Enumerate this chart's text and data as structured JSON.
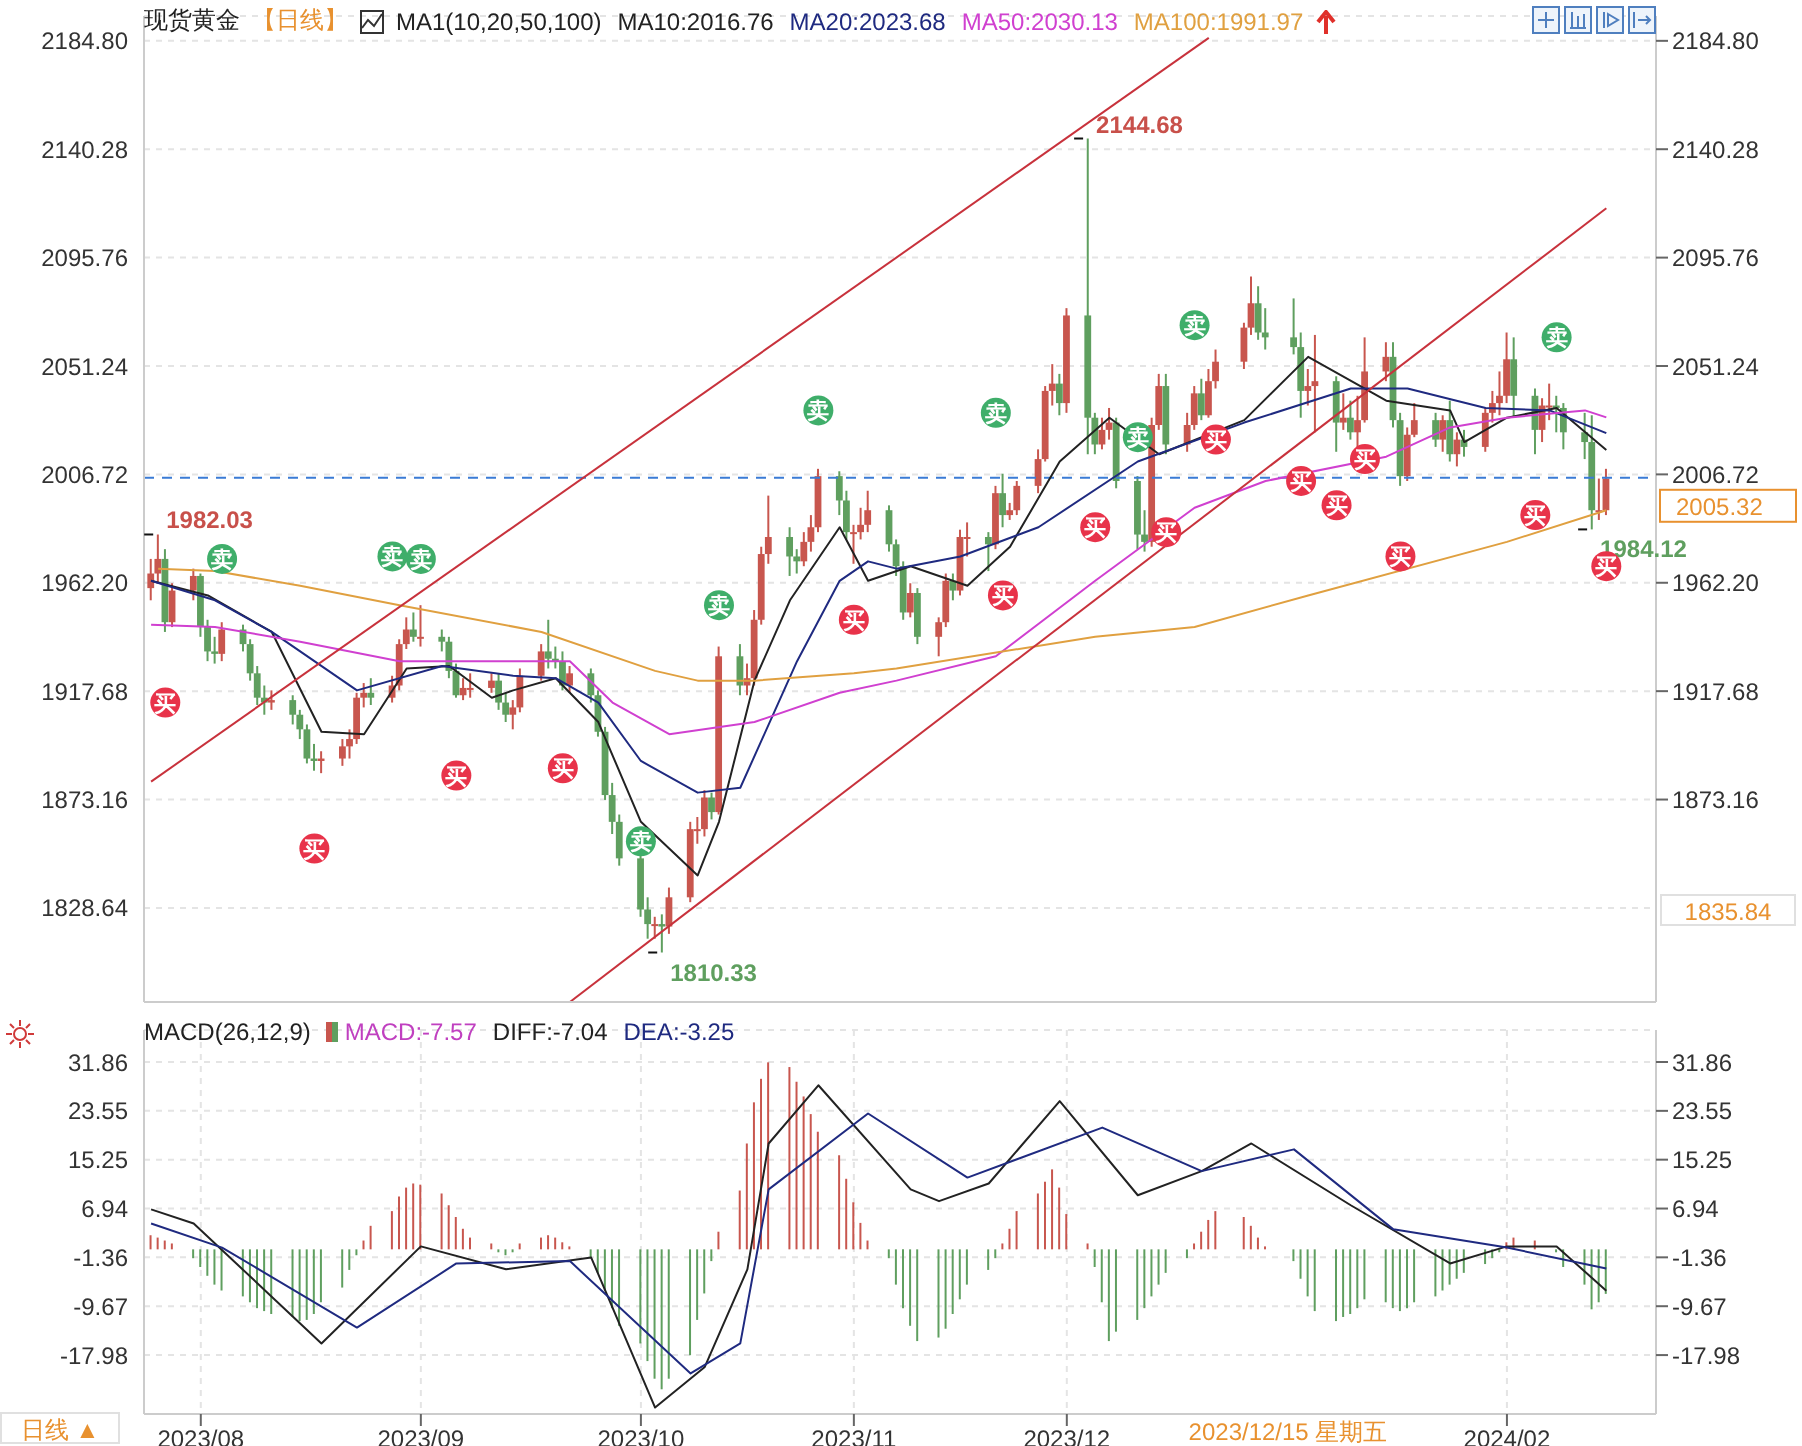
{
  "chart_data": [
    {
      "type": "candlestick",
      "title": "现货黄金",
      "subtitle": "【日线】",
      "legend_title": "MA1(10,20,50,100)",
      "legend": "top",
      "grid": true,
      "tick_labels": "y",
      "x": [
        "2023-07-25",
        "2023-07-26",
        "2023-07-27",
        "2023-07-28",
        "2023-07-31",
        "2023-08-01",
        "2023-08-02",
        "2023-08-03",
        "2023-08-04",
        "2023-08-07",
        "2023-08-08",
        "2023-08-09",
        "2023-08-10",
        "2023-08-11",
        "2023-08-14",
        "2023-08-15",
        "2023-08-16",
        "2023-08-17",
        "2023-08-18",
        "2023-08-21",
        "2023-08-22",
        "2023-08-23",
        "2023-08-24",
        "2023-08-25",
        "2023-08-28",
        "2023-08-29",
        "2023-08-30",
        "2023-08-31",
        "2023-09-01",
        "2023-09-04",
        "2023-09-05",
        "2023-09-06",
        "2023-09-07",
        "2023-09-08",
        "2023-09-11",
        "2023-09-12",
        "2023-09-13",
        "2023-09-14",
        "2023-09-15",
        "2023-09-18",
        "2023-09-19",
        "2023-09-20",
        "2023-09-21",
        "2023-09-22",
        "2023-09-25",
        "2023-09-26",
        "2023-09-27",
        "2023-09-28",
        "2023-09-29",
        "2023-10-02",
        "2023-10-03",
        "2023-10-04",
        "2023-10-05",
        "2023-10-06",
        "2023-10-09",
        "2023-10-10",
        "2023-10-11",
        "2023-10-12",
        "2023-10-13",
        "2023-10-16",
        "2023-10-17",
        "2023-10-18",
        "2023-10-19",
        "2023-10-20",
        "2023-10-23",
        "2023-10-24",
        "2023-10-25",
        "2023-10-26",
        "2023-10-27",
        "2023-10-30",
        "2023-10-31",
        "2023-11-01",
        "2023-11-02",
        "2023-11-03",
        "2023-11-06",
        "2023-11-07",
        "2023-11-08",
        "2023-11-09",
        "2023-11-10",
        "2023-11-13",
        "2023-11-14",
        "2023-11-15",
        "2023-11-16",
        "2023-11-17",
        "2023-11-20",
        "2023-11-21",
        "2023-11-22",
        "2023-11-23",
        "2023-11-24",
        "2023-11-27",
        "2023-11-28",
        "2023-11-29",
        "2023-11-30",
        "2023-12-01",
        "2023-12-04",
        "2023-12-05",
        "2023-12-06",
        "2023-12-07",
        "2023-12-08",
        "2023-12-11",
        "2023-12-12",
        "2023-12-13",
        "2023-12-14",
        "2023-12-15",
        "2023-12-18",
        "2023-12-19",
        "2023-12-20",
        "2023-12-21",
        "2023-12-22",
        "2023-12-26",
        "2023-12-27",
        "2023-12-28",
        "2023-12-29",
        "2024-01-02",
        "2024-01-03",
        "2024-01-04",
        "2024-01-05",
        "2024-01-08",
        "2024-01-09",
        "2024-01-10",
        "2024-01-11",
        "2024-01-12",
        "2024-01-15",
        "2024-01-16",
        "2024-01-17",
        "2024-01-18",
        "2024-01-19",
        "2024-01-22",
        "2024-01-23",
        "2024-01-24",
        "2024-01-25",
        "2024-01-26",
        "2024-01-29",
        "2024-01-30",
        "2024-01-31",
        "2024-02-01",
        "2024-02-02",
        "2024-02-05",
        "2024-02-06",
        "2024-02-07",
        "2024-02-08",
        "2024-02-09",
        "2024-02-12",
        "2024-02-13",
        "2024-02-14",
        "2024-02-15"
      ],
      "ohlc": [
        [
          1960,
          1972,
          1955,
          1966
        ],
        [
          1966,
          1982.03,
          1962,
          1972
        ],
        [
          1972,
          1976,
          1942,
          1946
        ],
        [
          1946,
          1962,
          1944,
          1959
        ],
        [
          1959,
          1968,
          1955,
          1965
        ],
        [
          1965,
          1966,
          1940,
          1944
        ],
        [
          1944,
          1947,
          1930,
          1934
        ],
        [
          1934,
          1940,
          1929,
          1933
        ],
        [
          1933,
          1946,
          1930,
          1943
        ],
        [
          1943,
          1945,
          1934,
          1937
        ],
        [
          1937,
          1939,
          1922,
          1925
        ],
        [
          1925,
          1928,
          1912,
          1915
        ],
        [
          1915,
          1920,
          1908,
          1913
        ],
        [
          1913,
          1918,
          1910,
          1914
        ],
        [
          1914,
          1916,
          1904,
          1908
        ],
        [
          1908,
          1910,
          1898,
          1902
        ],
        [
          1902,
          1904,
          1888,
          1890
        ],
        [
          1890,
          1896,
          1885,
          1889
        ],
        [
          1889,
          1893,
          1884,
          1890
        ],
        [
          1890,
          1898,
          1887,
          1895
        ],
        [
          1895,
          1902,
          1890,
          1898
        ],
        [
          1898,
          1917,
          1896,
          1915
        ],
        [
          1915,
          1921,
          1911,
          1917
        ],
        [
          1917,
          1923,
          1912,
          1915
        ],
        [
          1915,
          1924,
          1913,
          1920
        ],
        [
          1920,
          1939,
          1918,
          1937
        ],
        [
          1937,
          1948,
          1935,
          1943
        ],
        [
          1943,
          1950,
          1938,
          1940
        ],
        [
          1940,
          1953,
          1936,
          1940
        ],
        [
          1940,
          1943,
          1934,
          1938
        ],
        [
          1938,
          1940,
          1923,
          1926
        ],
        [
          1926,
          1929,
          1915,
          1916
        ],
        [
          1916,
          1923,
          1914,
          1919
        ],
        [
          1919,
          1925,
          1915,
          1919
        ],
        [
          1919,
          1925,
          1917,
          1922
        ],
        [
          1922,
          1925,
          1910,
          1913
        ],
        [
          1913,
          1917,
          1905,
          1908
        ],
        [
          1908,
          1914,
          1902,
          1911
        ],
        [
          1911,
          1927,
          1909,
          1924
        ],
        [
          1924,
          1937,
          1922,
          1934
        ],
        [
          1934,
          1947,
          1927,
          1931
        ],
        [
          1931,
          1936,
          1927,
          1930
        ],
        [
          1930,
          1934,
          1918,
          1920
        ],
        [
          1920,
          1928,
          1917,
          1925
        ],
        [
          1925,
          1927,
          1913,
          1916
        ],
        [
          1916,
          1918,
          1899,
          1901
        ],
        [
          1901,
          1903,
          1873,
          1875
        ],
        [
          1875,
          1880,
          1859,
          1864
        ],
        [
          1864,
          1867,
          1846,
          1849
        ],
        [
          1849,
          1851,
          1825,
          1828
        ],
        [
          1828,
          1833,
          1816,
          1822
        ],
        [
          1822,
          1825,
          1816,
          1822
        ],
        [
          1822,
          1826,
          1810.33,
          1821
        ],
        [
          1821,
          1837,
          1818,
          1833
        ],
        [
          1833,
          1864,
          1831,
          1861
        ],
        [
          1861,
          1866,
          1855,
          1861
        ],
        [
          1861,
          1877,
          1858,
          1874
        ],
        [
          1874,
          1876,
          1865,
          1868
        ],
        [
          1868,
          1936,
          1867,
          1932
        ],
        [
          1932,
          1937,
          1916,
          1920
        ],
        [
          1920,
          1929,
          1916,
          1923
        ],
        [
          1923,
          1951,
          1920,
          1947
        ],
        [
          1947,
          1977,
          1945,
          1974
        ],
        [
          1974,
          1998,
          1970,
          1981
        ],
        [
          1981,
          1985,
          1965,
          1973
        ],
        [
          1973,
          1976,
          1966,
          1971
        ],
        [
          1971,
          1983,
          1969,
          1979
        ],
        [
          1979,
          1990,
          1975,
          1985
        ],
        [
          1985,
          2009,
          1983,
          2006
        ],
        [
          2006,
          2008,
          1990,
          1996
        ],
        [
          1996,
          2000,
          1980,
          1983
        ],
        [
          1983,
          1986,
          1970,
          1983
        ],
        [
          1983,
          1993,
          1980,
          1986
        ],
        [
          1986,
          2000,
          1983,
          1992
        ],
        [
          1992,
          1994,
          1975,
          1978
        ],
        [
          1978,
          1980,
          1965,
          1969
        ],
        [
          1969,
          1971,
          1947,
          1950
        ],
        [
          1950,
          1962,
          1948,
          1958
        ],
        [
          1958,
          1960,
          1937,
          1940
        ],
        [
          1940,
          1948,
          1932,
          1946
        ],
        [
          1946,
          1966,
          1944,
          1963
        ],
        [
          1963,
          1966,
          1955,
          1959
        ],
        [
          1959,
          1984,
          1957,
          1981
        ],
        [
          1981,
          1987,
          1973,
          1981
        ],
        [
          1981,
          1983,
          1967,
          1978
        ],
        [
          1978,
          2002,
          1976,
          1999
        ],
        [
          1999,
          2007,
          1985,
          1990
        ],
        [
          1990,
          1995,
          1988,
          1992
        ],
        [
          1992,
          2004,
          1990,
          2002
        ],
        [
          2002,
          2017,
          1999,
          2013
        ],
        [
          2013,
          2043,
          2012,
          2041
        ],
        [
          2041,
          2052,
          2035,
          2044
        ],
        [
          2044,
          2048,
          2031,
          2036
        ],
        [
          2036,
          2075,
          2032,
          2072
        ],
        [
          2072,
          2144.68,
          2015,
          2030
        ],
        [
          2030,
          2032,
          2015,
          2019
        ],
        [
          2019,
          2030,
          2017,
          2025
        ],
        [
          2025,
          2034,
          2021,
          2028
        ],
        [
          2028,
          2030,
          2001,
          2004
        ],
        [
          2004,
          2006,
          1976,
          1982
        ],
        [
          1982,
          1992,
          1975,
          1979
        ],
        [
          1979,
          2030,
          1977,
          2027
        ],
        [
          2027,
          2048,
          2025,
          2043
        ],
        [
          2043,
          2048,
          2015,
          2019
        ],
        [
          2019,
          2032,
          2016,
          2027
        ],
        [
          2027,
          2043,
          2025,
          2040
        ],
        [
          2040,
          2046,
          2029,
          2031
        ],
        [
          2031,
          2050,
          2030,
          2045
        ],
        [
          2045,
          2058,
          2042,
          2053
        ],
        [
          2053,
          2069,
          2050,
          2067
        ],
        [
          2067,
          2088,
          2064,
          2077
        ],
        [
          2077,
          2084,
          2062,
          2065
        ],
        [
          2065,
          2075,
          2058,
          2063
        ],
        [
          2063,
          2079,
          2056,
          2059
        ],
        [
          2059,
          2065,
          2030,
          2041
        ],
        [
          2041,
          2050,
          2035,
          2043
        ],
        [
          2043,
          2064,
          2024,
          2045
        ],
        [
          2045,
          2047,
          2016,
          2028
        ],
        [
          2028,
          2040,
          2025,
          2030
        ],
        [
          2030,
          2037,
          2021,
          2024
        ],
        [
          2024,
          2039,
          2013,
          2029
        ],
        [
          2029,
          2063,
          2028,
          2049
        ],
        [
          2049,
          2061,
          2045,
          2055
        ],
        [
          2055,
          2061,
          2026,
          2029
        ],
        [
          2029,
          2032,
          2002,
          2006
        ],
        [
          2006,
          2026,
          2004,
          2023
        ],
        [
          2023,
          2036,
          2022,
          2029
        ],
        [
          2029,
          2032,
          2018,
          2021
        ],
        [
          2021,
          2031,
          2016,
          2029
        ],
        [
          2029,
          2037,
          2012,
          2015
        ],
        [
          2015,
          2024,
          2010,
          2021
        ],
        [
          2021,
          2025,
          2014,
          2018
        ],
        [
          2018,
          2034,
          2016,
          2032
        ],
        [
          2032,
          2041,
          2028,
          2036
        ],
        [
          2036,
          2049,
          2031,
          2039
        ],
        [
          2039,
          2065,
          2036,
          2054
        ],
        [
          2054,
          2063,
          2030,
          2039
        ],
        [
          2039,
          2042,
          2015,
          2025
        ],
        [
          2025,
          2038,
          2020,
          2035
        ],
        [
          2035,
          2044,
          2029,
          2035
        ],
        [
          2035,
          2039,
          2024,
          2034
        ],
        [
          2034,
          2036,
          2017,
          2024
        ],
        [
          2024,
          2032,
          2013,
          2020
        ],
        [
          2020,
          2031,
          1984.12,
          1992
        ],
        [
          1992,
          2005,
          1988,
          1992
        ],
        [
          1992,
          2009,
          1990,
          2005
        ]
      ],
      "series": [
        {
          "type": "line",
          "name": "MA10:2016.76",
          "color": "#222222",
          "x": [
            "2023-07-25",
            "2023-08-02",
            "2023-08-11",
            "2023-08-18",
            "2023-08-24",
            "2023-08-30",
            "2023-09-05",
            "2023-09-11",
            "2023-09-14",
            "2023-09-20",
            "2023-09-26",
            "2023-10-02",
            "2023-10-10",
            "2023-10-13",
            "2023-10-18",
            "2023-10-23",
            "2023-10-30",
            "2023-11-03",
            "2023-11-09",
            "2023-11-17",
            "2023-11-23",
            "2023-11-30",
            "2023-12-07",
            "2023-12-14",
            "2023-12-26",
            "2024-01-04",
            "2024-01-15",
            "2024-01-24",
            "2024-01-26",
            "2024-02-01",
            "2024-02-08",
            "2024-02-15"
          ],
          "values": [
            1963,
            1957,
            1942,
            1901,
            1900,
            1927,
            1928,
            1915,
            1918,
            1923,
            1905,
            1864,
            1842,
            1864,
            1922,
            1955,
            1985,
            1963,
            1969,
            1961,
            1977,
            2012,
            2030,
            2015,
            2029,
            2055,
            2037,
            2033,
            2020,
            2030,
            2034,
            2016.76
          ]
        },
        {
          "type": "line",
          "name": "MA20:2023.68",
          "color": "#1f2a80",
          "x": [
            "2023-07-25",
            "2023-08-03",
            "2023-08-11",
            "2023-08-23",
            "2023-09-04",
            "2023-09-14",
            "2023-09-20",
            "2023-09-26",
            "2023-10-02",
            "2023-10-10",
            "2023-10-16",
            "2023-10-24",
            "2023-10-30",
            "2023-11-03",
            "2023-11-07",
            "2023-11-16",
            "2023-11-27",
            "2023-12-11",
            "2023-12-26",
            "2024-01-10",
            "2024-01-18",
            "2024-01-29",
            "2024-02-07",
            "2024-02-15"
          ],
          "values": [
            1963,
            1955,
            1942,
            1918,
            1928,
            1924,
            1923,
            1913,
            1889,
            1876,
            1878,
            1930,
            1963,
            1971,
            1968,
            1973,
            1985,
            2012,
            2028,
            2042,
            2042,
            2034,
            2033,
            2023.68
          ]
        },
        {
          "type": "line",
          "name": "MA50:2030.13",
          "color": "#d040d0",
          "x": [
            "2023-07-25",
            "2023-08-03",
            "2023-08-15",
            "2023-08-29",
            "2023-09-12",
            "2023-09-22",
            "2023-09-28",
            "2023-10-06",
            "2023-10-18",
            "2023-10-30",
            "2023-11-07",
            "2023-11-21",
            "2023-12-05",
            "2023-12-19",
            "2023-12-29",
            "2024-01-15",
            "2024-01-24",
            "2024-02-01",
            "2024-02-12",
            "2024-02-15"
          ],
          "values": [
            1945,
            1944,
            1938,
            1930,
            1930,
            1930,
            1913,
            1900,
            1905,
            1917,
            1922,
            1932,
            1963,
            1993,
            2004,
            2014,
            2026,
            2030,
            2033,
            2030.13
          ]
        },
        {
          "type": "line",
          "name": "MA100:1991.97",
          "color": "#e0a040",
          "x": [
            "2023-07-26",
            "2023-08-03",
            "2023-08-15",
            "2023-08-29",
            "2023-09-18",
            "2023-10-04",
            "2023-10-10",
            "2023-10-18",
            "2023-11-01",
            "2023-11-07",
            "2023-12-05",
            "2023-12-19",
            "2024-01-04",
            "2024-02-01",
            "2024-02-15"
          ],
          "values": [
            1968,
            1967,
            1961,
            1953,
            1942,
            1926,
            1922,
            1922,
            1925,
            1927,
            1940,
            1944,
            1957,
            1979,
            1991.97
          ]
        },
        {
          "type": "line",
          "color": "#c8323c",
          "x": [
            "2023-07-25",
            "2023-12-21"
          ],
          "values": [
            1880.5,
            2186
          ]
        },
        {
          "type": "line",
          "color": "#c8323c",
          "x": [
            "2023-09-22",
            "2024-02-15"
          ],
          "values": [
            1790,
            2116
          ]
        },
        {
          "type": "scatter",
          "name": "卖",
          "color": "#3fae6a",
          "x": [
            "2023-08-04",
            "2023-08-28",
            "2023-09-01",
            "2023-10-02",
            "2023-10-13",
            "2023-10-27",
            "2023-11-21",
            "2023-12-11",
            "2023-12-19",
            "2024-02-08"
          ],
          "values": [
            1972,
            1973,
            1972,
            1856,
            1953,
            2033,
            2032,
            2022,
            2068,
            2063
          ]
        },
        {
          "type": "scatter",
          "name": "买",
          "color": "#e8334a",
          "x": [
            "2023-07-27",
            "2023-08-17",
            "2023-09-06",
            "2023-09-21",
            "2023-11-01",
            "2023-11-22",
            "2023-12-05",
            "2023-12-15",
            "2023-12-22",
            "2024-01-03",
            "2024-01-08",
            "2024-01-12",
            "2024-01-17",
            "2024-02-05",
            "2024-02-15"
          ],
          "values": [
            1913,
            1853,
            1883,
            1886,
            1947,
            1957,
            1985,
            1983,
            2021,
            2004,
            1994,
            2013,
            1973,
            1990,
            1969
          ]
        }
      ],
      "xlim": [
        "2023-07-24",
        "2024-02-22"
      ],
      "xticks": [
        {
          "value": "2023-08-01",
          "label": null
        },
        {
          "value": "2023-09-01",
          "label": null
        },
        {
          "value": "2023-10-02",
          "label": null
        },
        {
          "value": "2023-11-01",
          "label": null
        },
        {
          "value": "2023-12-01",
          "label": null
        },
        {
          "value": "2024-02-01",
          "label": null
        }
      ],
      "ylim": [
        1790,
        2195
      ],
      "yticks": [
        1828.64,
        1873.16,
        1917.68,
        {
          "value": 1962.2,
          "label": "1962.20"
        },
        2006.72,
        2051.24,
        2095.76,
        2140.28,
        {
          "value": 2184.8,
          "label": "2184.80"
        }
      ],
      "y2lim": [
        1790,
        2195
      ],
      "y2ticks": [
        1873.16,
        1917.68,
        {
          "value": 1962.2,
          "label": "1962.20"
        },
        2006.72,
        2051.24,
        2095.76,
        2140.28,
        {
          "value": 2184.8,
          "label": "2184.80"
        }
      ],
      "ref_lines": [
        {
          "axis": "y",
          "value": 2005.32,
          "label": "2005.32",
          "color": "#3a7bd5",
          "line_style": "dashed"
        }
      ],
      "annotations": [
        "1835.84",
        {
          "text": "1982.03",
          "x": "2023-07-26",
          "y": 1982.03
        },
        {
          "text": "1810.33",
          "x": "2023-10-05",
          "y": 1810.33
        },
        {
          "text": "2144.68",
          "x": "2023-12-04",
          "y": 2144.68
        },
        {
          "text": "1984.12",
          "x": "2024-02-13",
          "y": 1984.12
        }
      ]
    },
    {
      "type": "bar",
      "legend_title": "MACD(26,12,9)",
      "legend": "top",
      "grid": true,
      "x": [
        "2023-07-25",
        "2023-07-26",
        "2023-07-27",
        "2023-07-28",
        "2023-07-31",
        "2023-08-01",
        "2023-08-02",
        "2023-08-03",
        "2023-08-04",
        "2023-08-07",
        "2023-08-08",
        "2023-08-09",
        "2023-08-10",
        "2023-08-11",
        "2023-08-14",
        "2023-08-15",
        "2023-08-16",
        "2023-08-17",
        "2023-08-18",
        "2023-08-21",
        "2023-08-22",
        "2023-08-23",
        "2023-08-24",
        "2023-08-25",
        "2023-08-28",
        "2023-08-29",
        "2023-08-30",
        "2023-08-31",
        "2023-09-01",
        "2023-09-04",
        "2023-09-05",
        "2023-09-06",
        "2023-09-07",
        "2023-09-08",
        "2023-09-11",
        "2023-09-12",
        "2023-09-13",
        "2023-09-14",
        "2023-09-15",
        "2023-09-18",
        "2023-09-19",
        "2023-09-20",
        "2023-09-21",
        "2023-09-22",
        "2023-09-25",
        "2023-09-26",
        "2023-09-27",
        "2023-09-28",
        "2023-09-29",
        "2023-10-02",
        "2023-10-03",
        "2023-10-04",
        "2023-10-05",
        "2023-10-06",
        "2023-10-09",
        "2023-10-10",
        "2023-10-11",
        "2023-10-12",
        "2023-10-13",
        "2023-10-16",
        "2023-10-17",
        "2023-10-18",
        "2023-10-19",
        "2023-10-20",
        "2023-10-23",
        "2023-10-24",
        "2023-10-25",
        "2023-10-26",
        "2023-10-27",
        "2023-10-30",
        "2023-10-31",
        "2023-11-01",
        "2023-11-02",
        "2023-11-03",
        "2023-11-06",
        "2023-11-07",
        "2023-11-08",
        "2023-11-09",
        "2023-11-10",
        "2023-11-13",
        "2023-11-14",
        "2023-11-15",
        "2023-11-16",
        "2023-11-17",
        "2023-11-20",
        "2023-11-21",
        "2023-11-22",
        "2023-11-23",
        "2023-11-24",
        "2023-11-27",
        "2023-11-28",
        "2023-11-29",
        "2023-11-30",
        "2023-12-01",
        "2023-12-04",
        "2023-12-05",
        "2023-12-06",
        "2023-12-07",
        "2023-12-08",
        "2023-12-11",
        "2023-12-12",
        "2023-12-13",
        "2023-12-14",
        "2023-12-15",
        "2023-12-18",
        "2023-12-19",
        "2023-12-20",
        "2023-12-21",
        "2023-12-22",
        "2023-12-26",
        "2023-12-27",
        "2023-12-28",
        "2023-12-29",
        "2024-01-02",
        "2024-01-03",
        "2024-01-04",
        "2024-01-05",
        "2024-01-08",
        "2024-01-09",
        "2024-01-10",
        "2024-01-11",
        "2024-01-12",
        "2024-01-15",
        "2024-01-16",
        "2024-01-17",
        "2024-01-18",
        "2024-01-19",
        "2024-01-22",
        "2024-01-23",
        "2024-01-24",
        "2024-01-25",
        "2024-01-26",
        "2024-01-29",
        "2024-01-30",
        "2024-01-31",
        "2024-02-01",
        "2024-02-02",
        "2024-02-05",
        "2024-02-06",
        "2024-02-07",
        "2024-02-08",
        "2024-02-09",
        "2024-02-12",
        "2024-02-13",
        "2024-02-14",
        "2024-02-15"
      ],
      "series": [
        {
          "name": "MACD:-7.57",
          "color": "#c040c0",
          "values": [
            2.4,
            2,
            1.5,
            1,
            -1.5,
            -3,
            -4.5,
            -6,
            -7,
            -8,
            -9,
            -10,
            -10.5,
            -11,
            -11.5,
            -12.2,
            -12,
            -11,
            -9,
            -6.5,
            -3.5,
            -1,
            1.5,
            4,
            6.5,
            9,
            10.5,
            11.2,
            11,
            9.5,
            7.5,
            5.5,
            3.5,
            2,
            1,
            -0.5,
            -1,
            -0.5,
            1,
            2,
            2.4,
            2,
            1.2,
            0.5,
            -1.5,
            -4,
            -7,
            -10,
            -13,
            -16,
            -19,
            -22,
            -23.8,
            -22,
            -18,
            -12,
            -7.5,
            -2,
            3,
            10,
            18,
            25,
            29,
            31.8,
            31,
            28.5,
            26,
            23,
            20,
            16,
            12,
            8,
            4.5,
            1.5,
            -1.5,
            -6,
            -10,
            -13,
            -15.6,
            -15,
            -13.5,
            -11,
            -8.5,
            -6,
            -3.5,
            -1.5,
            1,
            3.5,
            6.5,
            9.5,
            11.5,
            13.6,
            10.5,
            6,
            1,
            -3,
            -9,
            -15.6,
            -14,
            -12,
            -10,
            -8,
            -6,
            -4,
            -1.5,
            1,
            3,
            5,
            6.5,
            5.5,
            4,
            2,
            0.5,
            -2,
            -5,
            -8,
            -10.5,
            -12.2,
            -11.5,
            -11,
            -10,
            -8.5,
            -9,
            -10,
            -10.5,
            -10,
            -9,
            -8,
            -7,
            -6,
            -5,
            -4,
            -2.5,
            -1.5,
            -0.5,
            1.2,
            2,
            1.5,
            null,
            null,
            -0.5,
            -3,
            -6,
            -10.2,
            -9,
            -7.57
          ],
          "colors": [
            "#c8564e",
            "#c8564e",
            "#c8564e",
            "#c8564e",
            "#5f9f5f",
            "#5f9f5f",
            "#5f9f5f",
            "#5f9f5f",
            "#5f9f5f",
            "#5f9f5f",
            "#5f9f5f",
            "#5f9f5f",
            "#5f9f5f",
            "#5f9f5f",
            "#5f9f5f",
            "#5f9f5f",
            "#5f9f5f",
            "#5f9f5f",
            "#5f9f5f",
            "#5f9f5f",
            "#5f9f5f",
            "#5f9f5f",
            "#c8564e",
            "#c8564e",
            "#c8564e",
            "#c8564e",
            "#c8564e",
            "#c8564e",
            "#c8564e",
            "#c8564e",
            "#c8564e",
            "#c8564e",
            "#c8564e",
            "#c8564e",
            "#c8564e",
            "#5f9f5f",
            "#5f9f5f",
            "#5f9f5f",
            "#c8564e",
            "#c8564e",
            "#c8564e",
            "#c8564e",
            "#c8564e",
            "#c8564e",
            "#5f9f5f",
            "#5f9f5f",
            "#5f9f5f",
            "#5f9f5f",
            "#5f9f5f",
            "#5f9f5f",
            "#5f9f5f",
            "#5f9f5f",
            "#5f9f5f",
            "#5f9f5f",
            "#5f9f5f",
            "#5f9f5f",
            "#5f9f5f",
            "#5f9f5f",
            "#c8564e",
            "#c8564e",
            "#c8564e",
            "#c8564e",
            "#c8564e",
            "#c8564e",
            "#c8564e",
            "#c8564e",
            "#c8564e",
            "#c8564e",
            "#c8564e",
            "#c8564e",
            "#c8564e",
            "#c8564e",
            "#c8564e",
            "#c8564e",
            "#5f9f5f",
            "#5f9f5f",
            "#5f9f5f",
            "#5f9f5f",
            "#5f9f5f",
            "#5f9f5f",
            "#5f9f5f",
            "#5f9f5f",
            "#5f9f5f",
            "#5f9f5f",
            "#5f9f5f",
            "#5f9f5f",
            "#c8564e",
            "#c8564e",
            "#c8564e",
            "#c8564e",
            "#c8564e",
            "#c8564e",
            "#c8564e",
            "#c8564e",
            "#c8564e",
            "#5f9f5f",
            "#5f9f5f",
            "#5f9f5f",
            "#5f9f5f",
            "#5f9f5f",
            "#5f9f5f",
            "#5f9f5f",
            "#5f9f5f",
            "#5f9f5f",
            "#5f9f5f",
            "#c8564e",
            "#c8564e",
            "#c8564e",
            "#c8564e",
            "#c8564e",
            "#c8564e",
            "#c8564e",
            "#c8564e",
            "#5f9f5f",
            "#5f9f5f",
            "#5f9f5f",
            "#5f9f5f",
            "#5f9f5f",
            "#5f9f5f",
            "#5f9f5f",
            "#5f9f5f",
            "#5f9f5f",
            "#5f9f5f",
            "#5f9f5f",
            "#5f9f5f",
            "#5f9f5f",
            "#5f9f5f",
            "#5f9f5f",
            "#5f9f5f",
            "#5f9f5f",
            "#5f9f5f",
            "#5f9f5f",
            "#5f9f5f",
            "#5f9f5f",
            "#5f9f5f",
            "#c8564e",
            "#c8564e",
            "#c8564e",
            "#c8564e",
            "#c8564e",
            "#5f9f5f",
            "#5f9f5f",
            "#5f9f5f",
            "#5f9f5f",
            "#5f9f5f",
            "#5f9f5f"
          ]
        },
        {
          "type": "line",
          "name": "DIFF:-7.04",
          "color": "#222222",
          "x": [
            "2023-07-25",
            "2023-07-31",
            "2023-08-18",
            "2023-09-01",
            "2023-09-13",
            "2023-09-25",
            "2023-10-04",
            "2023-10-11",
            "2023-10-17",
            "2023-10-20",
            "2023-10-27",
            "2023-11-09",
            "2023-11-13",
            "2023-11-20",
            "2023-11-30",
            "2023-12-11",
            "2023-12-20",
            "2023-12-27",
            "2024-01-10",
            "2024-01-24",
            "2024-02-01",
            "2024-02-08",
            "2024-02-15"
          ],
          "values": [
            6.8,
            4.4,
            -16,
            0.5,
            -3.4,
            -1.4,
            -26.9,
            -20,
            -3.4,
            18,
            27.9,
            10.2,
            8.2,
            11.2,
            25.2,
            9.2,
            13.3,
            18,
            7.5,
            -2.4,
            0.5,
            0.5,
            -7.04
          ]
        },
        {
          "type": "line",
          "name": "DEA:-3.25",
          "color": "#1f2a80",
          "x": [
            "2023-07-25",
            "2023-08-04",
            "2023-08-23",
            "2023-09-06",
            "2023-09-22",
            "2023-10-09",
            "2023-10-16",
            "2023-10-20",
            "2023-11-03",
            "2023-11-17",
            "2023-12-06",
            "2023-12-20",
            "2024-01-02",
            "2024-01-16",
            "2024-02-01",
            "2024-02-15"
          ],
          "values": [
            4.4,
            0.3,
            -13.3,
            -2.4,
            -2,
            -21.1,
            -16,
            10.2,
            23.1,
            12.2,
            20.7,
            13.3,
            17,
            3.4,
            0.3,
            -3.25
          ]
        }
      ],
      "xlim": [
        "2023-07-24",
        "2024-02-22"
      ],
      "xticks": [
        {
          "value": "2023-08-01",
          "label": "2023/08"
        },
        {
          "value": "2023-09-01",
          "label": "2023/09"
        },
        {
          "value": "2023-10-02",
          "label": "2023/10"
        },
        {
          "value": "2023-11-01",
          "label": "2023/11"
        },
        {
          "value": "2023-12-01",
          "label": "2023/12"
        },
        {
          "value": "2024-02-01",
          "label": "2024/02"
        }
      ],
      "ylim": [
        -28,
        37.3
      ],
      "yticks": [
        -17.98,
        -9.67,
        -1.36,
        6.94,
        15.25,
        23.55,
        31.86
      ],
      "y2lim": [
        -28,
        37.3
      ],
      "y2ticks": [
        -17.98,
        -9.67,
        -1.36,
        6.94,
        15.25,
        23.55,
        31.86
      ],
      "annotations": [
        "日线 ▲",
        "2023/12/15 星期五"
      ]
    }
  ]
}
